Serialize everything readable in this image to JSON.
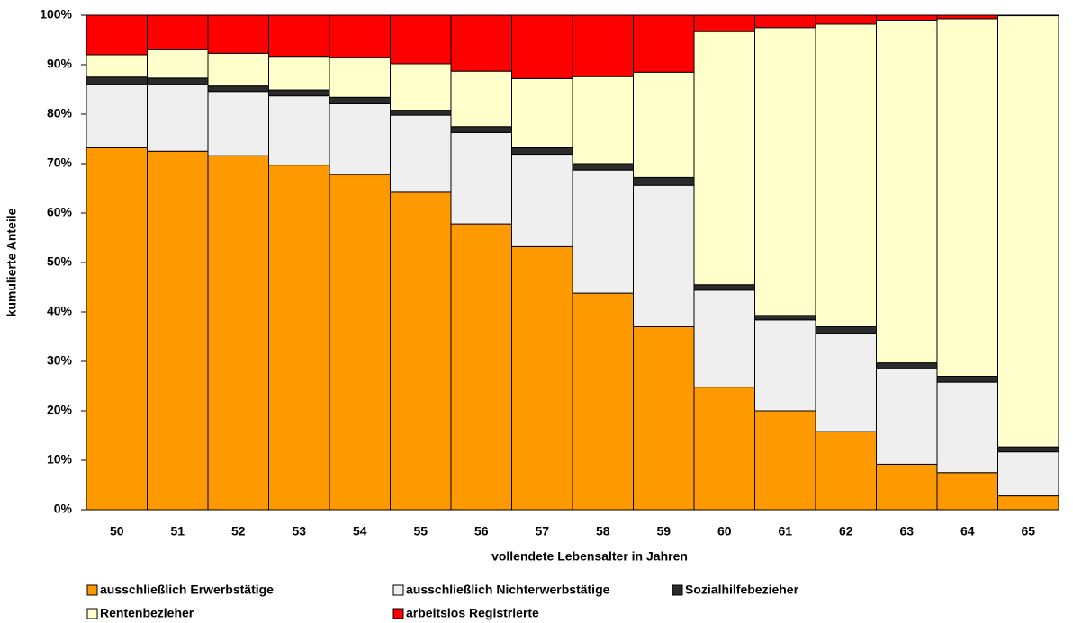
{
  "chart_data": {
    "type": "stacked_bar",
    "x_label": "vollendete Lebensalter in Jahren",
    "y_label": "kumulierte Anteile",
    "categories": [
      "50",
      "51",
      "52",
      "53",
      "54",
      "55",
      "56",
      "57",
      "58",
      "59",
      "60",
      "61",
      "62",
      "63",
      "64",
      "65"
    ],
    "series": [
      {
        "name": "ausschließlich Erwerbstätige",
        "color": "#ff9900",
        "values": [
          73.2,
          72.5,
          71.6,
          69.7,
          67.8,
          64.2,
          57.8,
          53.2,
          43.8,
          37.0,
          24.8,
          20.0,
          15.8,
          9.2,
          7.5,
          2.8
        ]
      },
      {
        "name": "ausschließlich Nichterwerbstätige",
        "color": "#efefef",
        "values": [
          12.8,
          13.5,
          13.0,
          14.0,
          14.3,
          15.6,
          18.5,
          18.7,
          24.9,
          28.6,
          19.6,
          18.4,
          19.9,
          19.3,
          18.3,
          8.9
        ]
      },
      {
        "name": "Sozialhilfebezieher",
        "color": "#2b2b2b",
        "values": [
          1.5,
          1.3,
          1.1,
          1.2,
          1.3,
          1.0,
          1.2,
          1.3,
          1.3,
          1.6,
          1.1,
          0.9,
          1.3,
          1.2,
          1.2,
          1.0
        ]
      },
      {
        "name": "Rentenbezieher",
        "color": "#ffffcc",
        "values": [
          4.5,
          5.7,
          6.6,
          6.8,
          8.1,
          9.4,
          11.2,
          14.0,
          17.6,
          21.3,
          51.2,
          58.2,
          61.2,
          69.3,
          72.3,
          87.2
        ]
      },
      {
        "name": "arbeitslos Registrierte",
        "color": "#ff0000",
        "values": [
          8.0,
          7.0,
          7.7,
          8.3,
          8.5,
          9.8,
          11.3,
          12.8,
          12.4,
          11.5,
          3.3,
          2.5,
          1.8,
          1.0,
          0.7,
          0.1
        ]
      }
    ],
    "ylim": [
      0,
      100
    ],
    "yticks": [
      {
        "value": 0,
        "label": "0%"
      },
      {
        "value": 10,
        "label": "10%"
      },
      {
        "value": 20,
        "label": "20%"
      },
      {
        "value": 30,
        "label": "30%"
      },
      {
        "value": 40,
        "label": "40%"
      },
      {
        "value": 50,
        "label": "50%"
      },
      {
        "value": 60,
        "label": "60%"
      },
      {
        "value": 70,
        "label": "70%"
      },
      {
        "value": 80,
        "label": "80%"
      },
      {
        "value": 90,
        "label": "90%"
      },
      {
        "value": 100,
        "label": "100%"
      }
    ],
    "grid": false
  }
}
